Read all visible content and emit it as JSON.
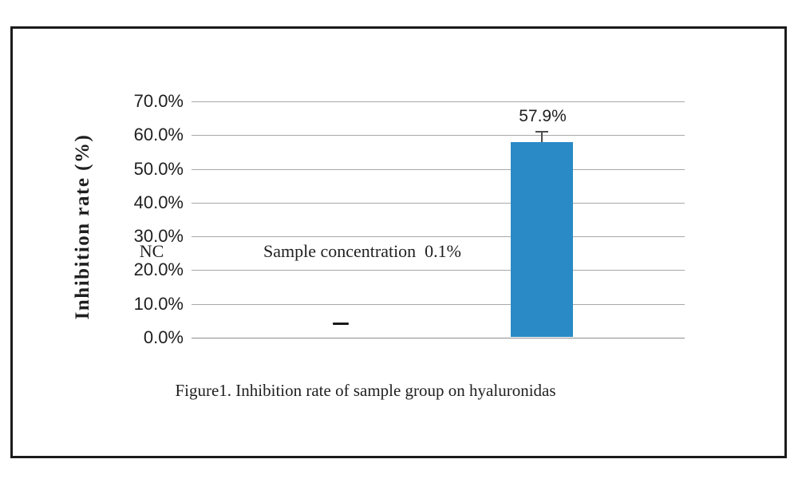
{
  "figure": {
    "caption": "Figure1. Inhibition rate of sample group on hyaluronidas"
  },
  "chart_data": {
    "type": "bar",
    "title": "",
    "xlabel": "",
    "ylabel": "Inhibition rate (%)",
    "categories": [
      "NC",
      "Sample concentration  0.1%"
    ],
    "values": [
      0,
      57.9
    ],
    "data_labels": [
      "",
      "57.9%"
    ],
    "error_plus": [
      0,
      3.3
    ],
    "nc_marker": {
      "type": "dash",
      "value": 4.3
    },
    "ylim": [
      0,
      70
    ],
    "y_ticks_top_to_bottom": [
      "70.0%",
      "60.0%",
      "50.0%",
      "40.0%",
      "30.0%",
      "20.0%",
      "10.0%",
      "0.0%"
    ],
    "grid": "horizontal-only",
    "legend": "none",
    "colors": {
      "bar": "#2a8ac6",
      "gridline": "#a8a8a8",
      "axis_line": "#8f8f8f",
      "error_bar": "#4d4d4d",
      "text": "#1f1f1f"
    }
  }
}
